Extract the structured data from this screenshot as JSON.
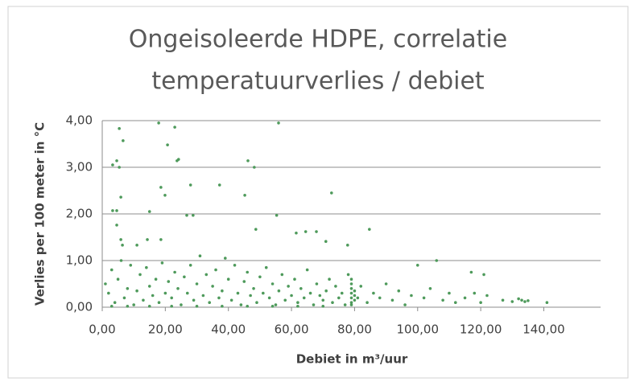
{
  "chart_data": {
    "type": "scatter",
    "title": [
      "Ongeisoleerde HDPE, correlatie",
      "temperatuurverlies / debiet"
    ],
    "x_label": "Debiet in m³/uur",
    "y_label": "Verlies per 100 meter in °C",
    "color": "#4e9a5b",
    "grid": true,
    "xlim": [
      0,
      158
    ],
    "ylim": [
      0,
      4
    ],
    "xticks": [
      {
        "value": 0,
        "label": "0,00"
      },
      {
        "value": 20,
        "label": "20,00"
      },
      {
        "value": 40,
        "label": "40,00"
      },
      {
        "value": 60,
        "label": "60,00"
      },
      {
        "value": 80,
        "label": "80,00"
      },
      {
        "value": 100,
        "label": "100,00"
      },
      {
        "value": 120,
        "label": "120,00"
      },
      {
        "value": 140,
        "label": "140,00"
      }
    ],
    "yticks": [
      {
        "value": 0,
        "label": "0,00"
      },
      {
        "value": 1,
        "label": "1,00"
      },
      {
        "value": 2,
        "label": "2,00"
      },
      {
        "value": 3,
        "label": "3,00"
      },
      {
        "value": 4,
        "label": "4,00"
      }
    ],
    "x": [
      5.4,
      6.6,
      3.3,
      4.6,
      5.4,
      17.9,
      23,
      20.7,
      24.2,
      23.7,
      18.6,
      19.9,
      28,
      37.2,
      46.2,
      48.2,
      45.2,
      55.9,
      72.7,
      3.3,
      4.6,
      15,
      5.9,
      26.8,
      28.8,
      55.3,
      84.7,
      48.7,
      61.5,
      64.5,
      67.9,
      70.9,
      77.8,
      4.6,
      5.9,
      6.4,
      18.6,
      14.3,
      11,
      1,
      2,
      3,
      4,
      5,
      6,
      7,
      8,
      9,
      10,
      11,
      12,
      13,
      14,
      15,
      16,
      17,
      18,
      19,
      20,
      21,
      22,
      23,
      24,
      25,
      26,
      27,
      28,
      29,
      30,
      31,
      32,
      33,
      34,
      35,
      36,
      37,
      38,
      39,
      40,
      41,
      42,
      43,
      44,
      45,
      46,
      47,
      48,
      49,
      50,
      51,
      52,
      53,
      54,
      55,
      56,
      57,
      58,
      59,
      60,
      61,
      62,
      63,
      64,
      65,
      66,
      67,
      68,
      69,
      70,
      71,
      72,
      73,
      74,
      75,
      76,
      77,
      78,
      79,
      79,
      79,
      79,
      79,
      79,
      79,
      80,
      80,
      80,
      81,
      82,
      84,
      86,
      88,
      90,
      92,
      94,
      96,
      98,
      100,
      102,
      104,
      106,
      108,
      110,
      112,
      115,
      117,
      118,
      120,
      121,
      122,
      127,
      130,
      132,
      133,
      134,
      135,
      141,
      3,
      8,
      15,
      22,
      30,
      38,
      46,
      54,
      62,
      70
    ],
    "values": [
      3.83,
      3.57,
      3.05,
      3.14,
      3,
      3.95,
      3.86,
      3.48,
      3.17,
      3.14,
      2.57,
      2.4,
      2.62,
      2.62,
      3.14,
      3,
      2.4,
      3.95,
      2.45,
      2.07,
      2.07,
      2.05,
      2.36,
      1.97,
      1.97,
      1.97,
      1.67,
      1.67,
      1.59,
      1.62,
      1.62,
      1.41,
      1.33,
      1.76,
      1.45,
      1.33,
      1.45,
      1.45,
      1.33,
      0.5,
      0.3,
      0.8,
      0.1,
      0.6,
      1.0,
      0.2,
      0.4,
      0.9,
      0.05,
      0.35,
      0.7,
      0.15,
      0.85,
      0.45,
      0.25,
      0.6,
      0.1,
      0.95,
      0.3,
      0.55,
      0.2,
      0.75,
      0.4,
      0.05,
      0.65,
      0.3,
      0.9,
      0.15,
      0.5,
      1.1,
      0.25,
      0.7,
      0.1,
      0.45,
      0.8,
      0.2,
      0.35,
      1.05,
      0.6,
      0.15,
      0.9,
      0.3,
      0.05,
      0.55,
      0.75,
      0.25,
      0.4,
      0.1,
      0.65,
      0.3,
      0.85,
      0.2,
      0.5,
      0.05,
      0.35,
      0.7,
      0.15,
      0.45,
      0.25,
      0.6,
      0.1,
      0.4,
      0.2,
      0.8,
      0.3,
      0.05,
      0.5,
      0.25,
      0.15,
      0.35,
      0.6,
      0.1,
      0.45,
      0.2,
      0.3,
      0.05,
      0.7,
      0.1,
      0.2,
      0.3,
      0.4,
      0.5,
      0.6,
      0.05,
      0.15,
      0.25,
      0.35,
      0.2,
      0.45,
      0.1,
      0.3,
      0.2,
      0.5,
      0.15,
      0.35,
      0.05,
      0.25,
      0.9,
      0.2,
      0.4,
      1.0,
      0.15,
      0.3,
      0.1,
      0.2,
      0.75,
      0.3,
      0.1,
      0.7,
      0.25,
      0.15,
      0.12,
      0.18,
      0.15,
      0.12,
      0.14,
      0.1,
      0.02,
      0.02,
      0.02,
      0.02,
      0.02,
      0.02,
      0.02,
      0.02,
      0.02,
      0.02
    ]
  }
}
